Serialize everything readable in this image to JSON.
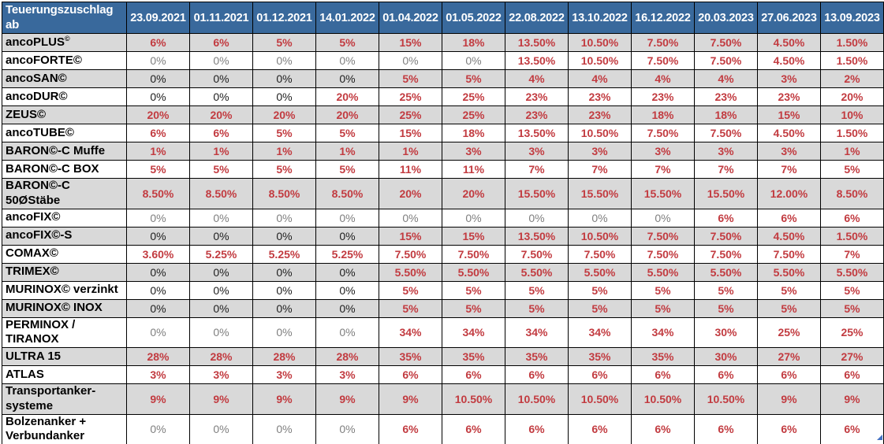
{
  "table": {
    "corner_label": "Teuerungszuschlag\nab",
    "columns": [
      "23.09.2021",
      "01.11.2021",
      "01.12.2021",
      "14.01.2022",
      "01.04.2022",
      "01.05.2022",
      "22.08.2022",
      "13.10.2022",
      "16.12.2022",
      "20.03.2023",
      "27.06.2023",
      "13.09.2023"
    ],
    "rows": [
      {
        "label": "ancoPLUS",
        "label_sup": "©",
        "values": [
          "6%",
          "6%",
          "5%",
          "5%",
          "15%",
          "18%",
          "13.50%",
          "10.50%",
          "7.50%",
          "7.50%",
          "4.50%",
          "1.50%"
        ]
      },
      {
        "label": "ancoFORTE©",
        "muted_zeros": true,
        "values": [
          "0%",
          "0%",
          "0%",
          "0%",
          "0%",
          "0%",
          "13.50%",
          "10.50%",
          "7.50%",
          "7.50%",
          "4.50%",
          "1.50%"
        ]
      },
      {
        "label": "ancoSAN©",
        "values": [
          "0%",
          "0%",
          "0%",
          "0%",
          "5%",
          "5%",
          "4%",
          "4%",
          "4%",
          "4%",
          "3%",
          "2%"
        ]
      },
      {
        "label": "ancoDUR©",
        "values": [
          "0%",
          "0%",
          "0%",
          "20%",
          "25%",
          "25%",
          "23%",
          "23%",
          "23%",
          "23%",
          "23%",
          "20%"
        ]
      },
      {
        "label": "ZEUS©",
        "values": [
          "20%",
          "20%",
          "20%",
          "20%",
          "25%",
          "25%",
          "23%",
          "23%",
          "18%",
          "18%",
          "15%",
          "10%"
        ]
      },
      {
        "label": "ancoTUBE©",
        "values": [
          "6%",
          "6%",
          "5%",
          "5%",
          "15%",
          "18%",
          "13.50%",
          "10.50%",
          "7.50%",
          "7.50%",
          "4.50%",
          "1.50%"
        ]
      },
      {
        "label": "BARON©-C Muffe",
        "values": [
          "1%",
          "1%",
          "1%",
          "1%",
          "1%",
          "3%",
          "3%",
          "3%",
          "3%",
          "3%",
          "3%",
          "1%"
        ]
      },
      {
        "label": "BARON©-C BOX",
        "values": [
          "5%",
          "5%",
          "5%",
          "5%",
          "11%",
          "11%",
          "7%",
          "7%",
          "7%",
          "7%",
          "7%",
          "5%"
        ]
      },
      {
        "label": "BARON©-C\n50ØStäbe",
        "tall": true,
        "values": [
          "8.50%",
          "8.50%",
          "8.50%",
          "8.50%",
          "20%",
          "20%",
          "15.50%",
          "15.50%",
          "15.50%",
          "15.50%",
          "12.00%",
          "8.50%"
        ]
      },
      {
        "label": "ancoFIX©",
        "muted_zeros": true,
        "values": [
          "0%",
          "0%",
          "0%",
          "0%",
          "0%",
          "0%",
          "0%",
          "0%",
          "0%",
          "6%",
          "6%",
          "6%"
        ]
      },
      {
        "label": "ancoFIX©-S",
        "values": [
          "0%",
          "0%",
          "0%",
          "0%",
          "15%",
          "15%",
          "13.50%",
          "10.50%",
          "7.50%",
          "7.50%",
          "4.50%",
          "1.50%"
        ]
      },
      {
        "label": "COMAX©",
        "values": [
          "3.60%",
          "5.25%",
          "5.25%",
          "5.25%",
          "7.50%",
          "7.50%",
          "7.50%",
          "7.50%",
          "7.50%",
          "7.50%",
          "7.50%",
          "7%"
        ]
      },
      {
        "label": "TRIMEX©",
        "values": [
          "0%",
          "0%",
          "0%",
          "0%",
          "5.50%",
          "5.50%",
          "5.50%",
          "5.50%",
          "5.50%",
          "5.50%",
          "5.50%",
          "5.50%"
        ]
      },
      {
        "label": "MURINOX© verzinkt",
        "values": [
          "0%",
          "0%",
          "0%",
          "0%",
          "5%",
          "5%",
          "5%",
          "5%",
          "5%",
          "5%",
          "5%",
          "5%"
        ]
      },
      {
        "label": "MURINOX© INOX",
        "values": [
          "0%",
          "0%",
          "0%",
          "0%",
          "5%",
          "5%",
          "5%",
          "5%",
          "5%",
          "5%",
          "5%",
          "5%"
        ]
      },
      {
        "label": "PERMINOX /\nTIRANOX",
        "tall": true,
        "muted_zeros": true,
        "values": [
          "0%",
          "0%",
          "0%",
          "0%",
          "34%",
          "34%",
          "34%",
          "34%",
          "34%",
          "30%",
          "25%",
          "25%"
        ]
      },
      {
        "label": "ULTRA 15",
        "values": [
          "28%",
          "28%",
          "28%",
          "28%",
          "35%",
          "35%",
          "35%",
          "35%",
          "35%",
          "30%",
          "27%",
          "27%"
        ]
      },
      {
        "label": "ATLAS",
        "values": [
          "3%",
          "3%",
          "3%",
          "3%",
          "6%",
          "6%",
          "6%",
          "6%",
          "6%",
          "6%",
          "6%",
          "6%"
        ]
      },
      {
        "label": "Transportanker-\nsysteme",
        "tall": true,
        "values": [
          "9%",
          "9%",
          "9%",
          "9%",
          "9%",
          "10.50%",
          "10.50%",
          "10.50%",
          "10.50%",
          "10.50%",
          "9%",
          "9%"
        ]
      },
      {
        "label": "Bolzenanker +\nVerbundanker",
        "tall": true,
        "muted_zeros": true,
        "values": [
          "0%",
          "0%",
          "0%",
          "0%",
          "6%",
          "6%",
          "6%",
          "6%",
          "6%",
          "6%",
          "6%",
          "6%"
        ]
      }
    ]
  },
  "colors": {
    "header_bg": "#39699C",
    "header_fg": "#FFFFFF",
    "row_alt_bg": "#D9D9D9",
    "value_red": "#C23B40",
    "zero_dark": "#202020",
    "zero_muted": "#7F7F7F",
    "border": "#000000",
    "fill_handle_blue": "#4472C4"
  }
}
